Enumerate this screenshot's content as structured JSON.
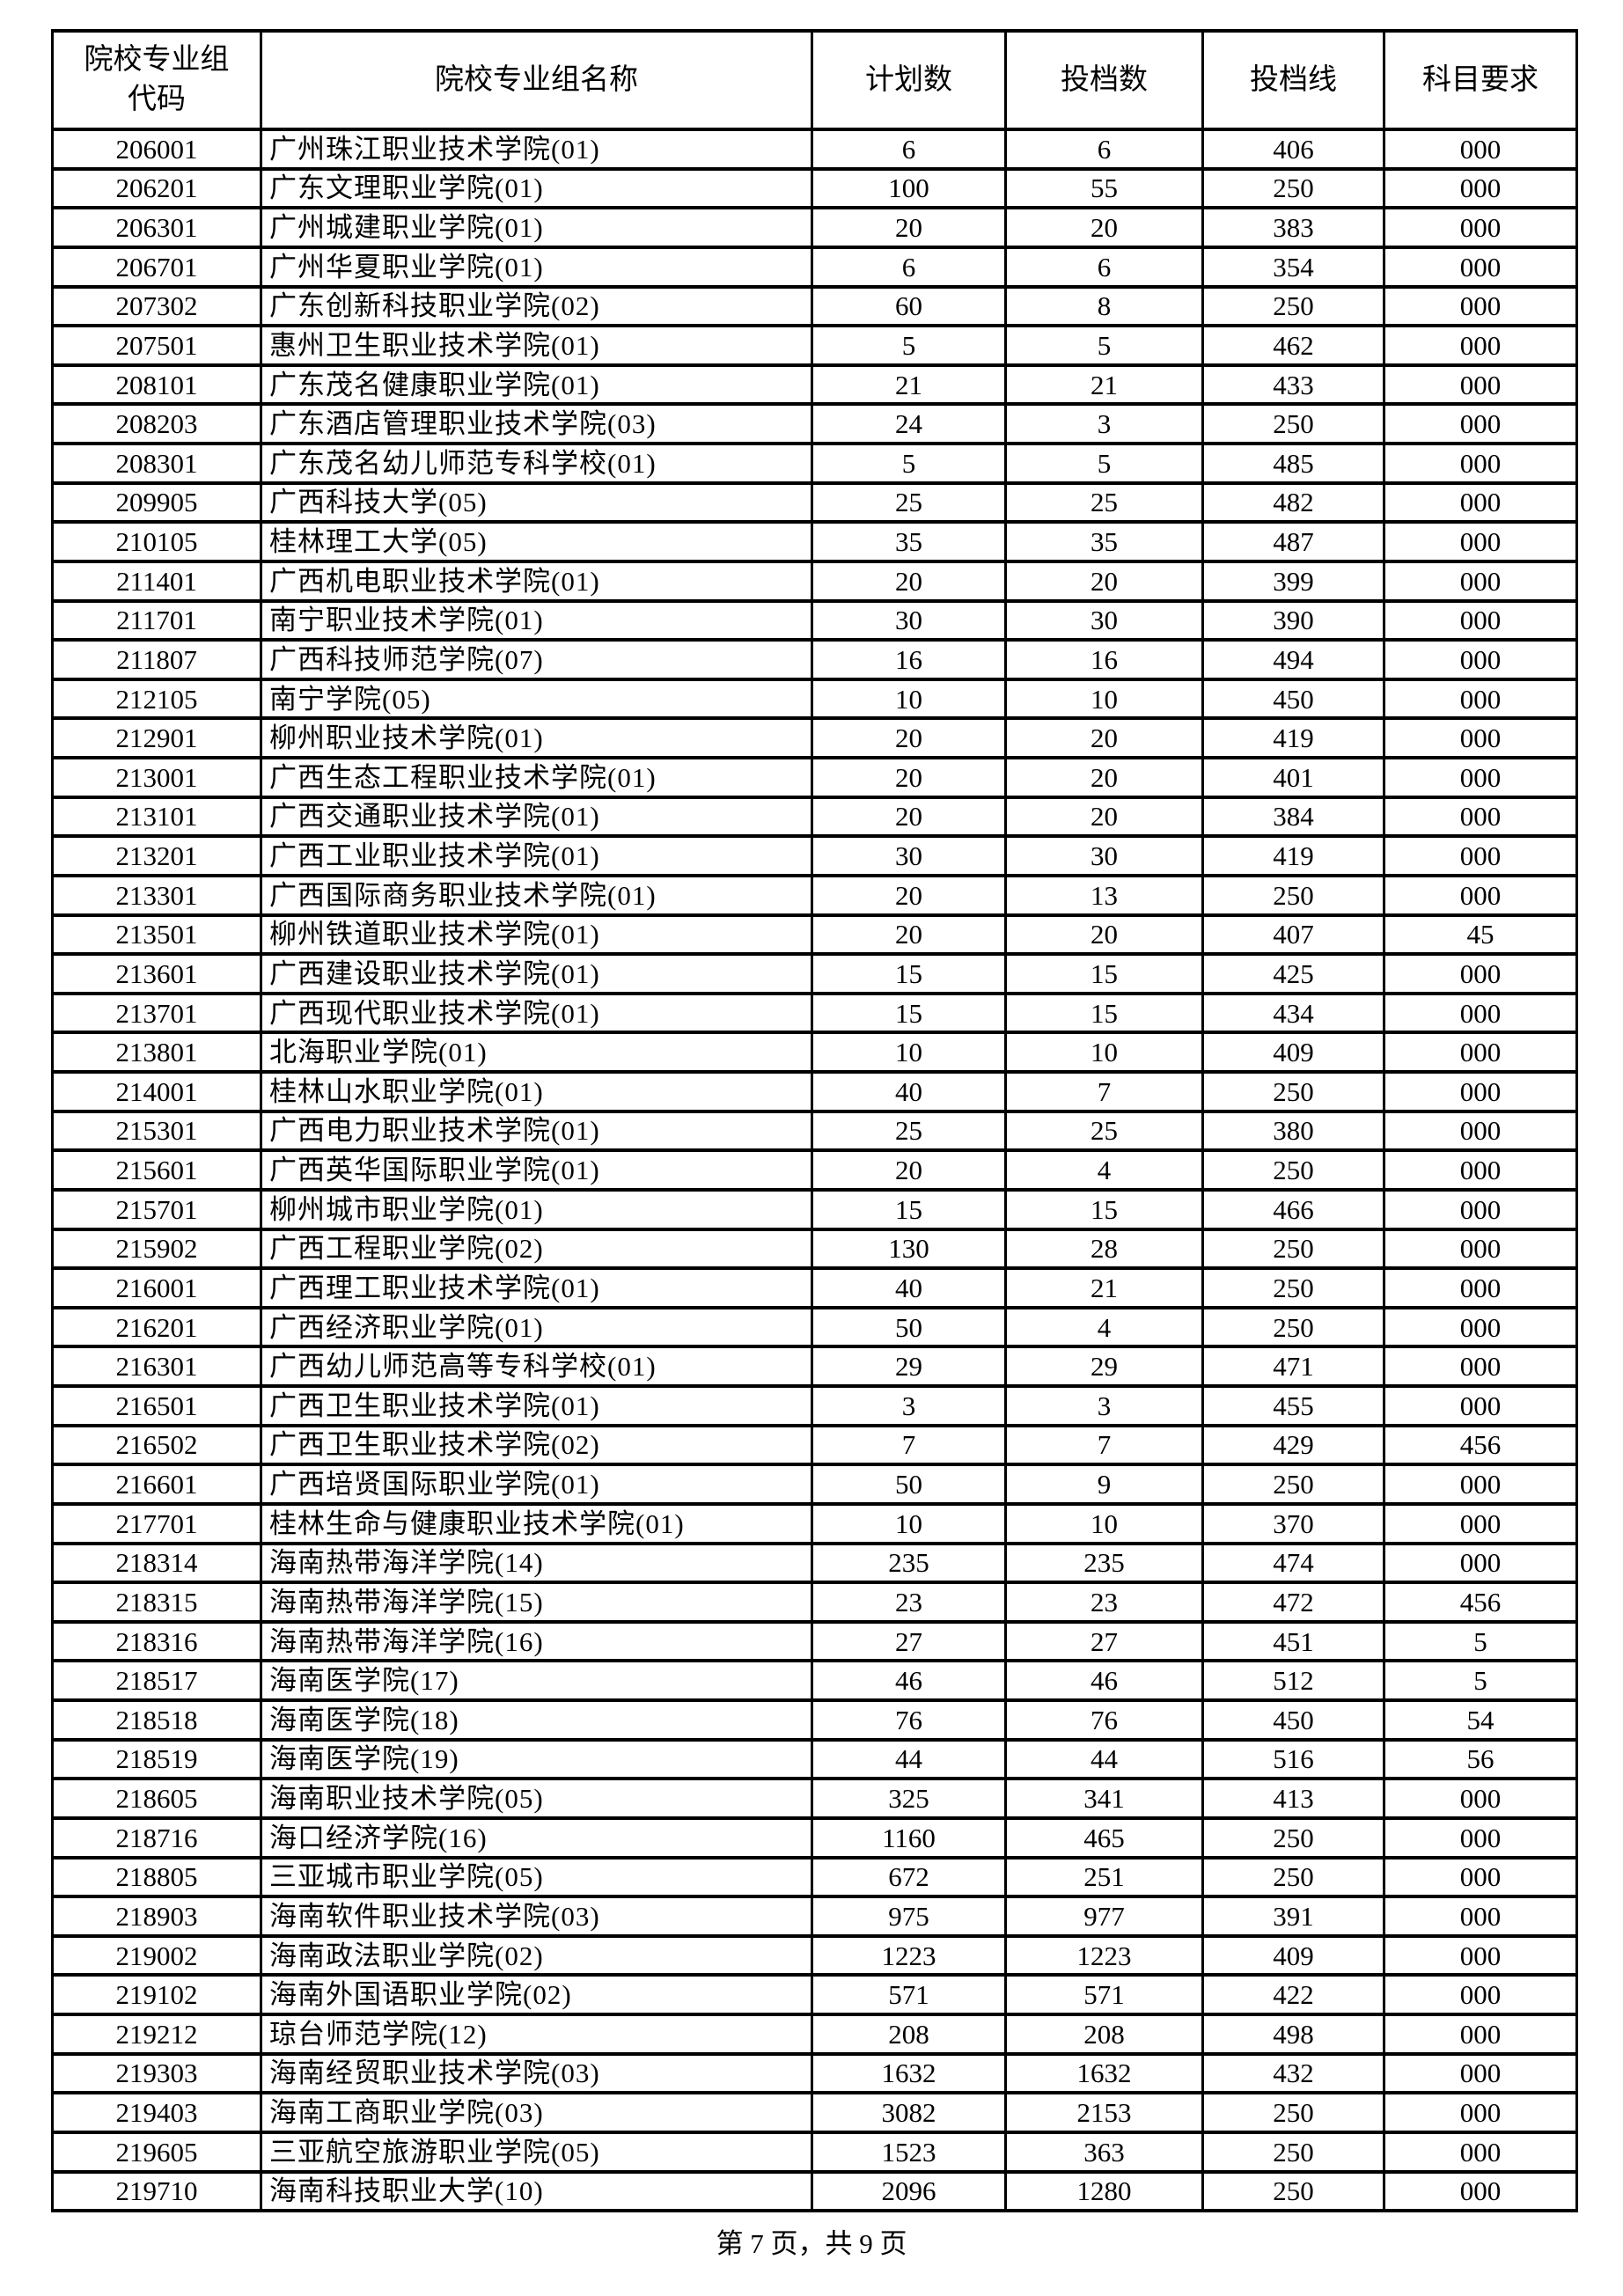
{
  "page": {
    "footer": "第 7 页，共 9 页"
  },
  "table": {
    "columns": [
      "院校专业组\n代码",
      "院校专业组名称",
      "计划数",
      "投档数",
      "投档线",
      "科目要求"
    ],
    "rows": [
      [
        "206001",
        "广州珠江职业技术学院(01)",
        "6",
        "6",
        "406",
        "000"
      ],
      [
        "206201",
        "广东文理职业学院(01)",
        "100",
        "55",
        "250",
        "000"
      ],
      [
        "206301",
        "广州城建职业学院(01)",
        "20",
        "20",
        "383",
        "000"
      ],
      [
        "206701",
        "广州华夏职业学院(01)",
        "6",
        "6",
        "354",
        "000"
      ],
      [
        "207302",
        "广东创新科技职业学院(02)",
        "60",
        "8",
        "250",
        "000"
      ],
      [
        "207501",
        "惠州卫生职业技术学院(01)",
        "5",
        "5",
        "462",
        "000"
      ],
      [
        "208101",
        "广东茂名健康职业学院(01)",
        "21",
        "21",
        "433",
        "000"
      ],
      [
        "208203",
        "广东酒店管理职业技术学院(03)",
        "24",
        "3",
        "250",
        "000"
      ],
      [
        "208301",
        "广东茂名幼儿师范专科学校(01)",
        "5",
        "5",
        "485",
        "000"
      ],
      [
        "209905",
        "广西科技大学(05)",
        "25",
        "25",
        "482",
        "000"
      ],
      [
        "210105",
        "桂林理工大学(05)",
        "35",
        "35",
        "487",
        "000"
      ],
      [
        "211401",
        "广西机电职业技术学院(01)",
        "20",
        "20",
        "399",
        "000"
      ],
      [
        "211701",
        "南宁职业技术学院(01)",
        "30",
        "30",
        "390",
        "000"
      ],
      [
        "211807",
        "广西科技师范学院(07)",
        "16",
        "16",
        "494",
        "000"
      ],
      [
        "212105",
        "南宁学院(05)",
        "10",
        "10",
        "450",
        "000"
      ],
      [
        "212901",
        "柳州职业技术学院(01)",
        "20",
        "20",
        "419",
        "000"
      ],
      [
        "213001",
        "广西生态工程职业技术学院(01)",
        "20",
        "20",
        "401",
        "000"
      ],
      [
        "213101",
        "广西交通职业技术学院(01)",
        "20",
        "20",
        "384",
        "000"
      ],
      [
        "213201",
        "广西工业职业技术学院(01)",
        "30",
        "30",
        "419",
        "000"
      ],
      [
        "213301",
        "广西国际商务职业技术学院(01)",
        "20",
        "13",
        "250",
        "000"
      ],
      [
        "213501",
        "柳州铁道职业技术学院(01)",
        "20",
        "20",
        "407",
        "45"
      ],
      [
        "213601",
        "广西建设职业技术学院(01)",
        "15",
        "15",
        "425",
        "000"
      ],
      [
        "213701",
        "广西现代职业技术学院(01)",
        "15",
        "15",
        "434",
        "000"
      ],
      [
        "213801",
        "北海职业学院(01)",
        "10",
        "10",
        "409",
        "000"
      ],
      [
        "214001",
        "桂林山水职业学院(01)",
        "40",
        "7",
        "250",
        "000"
      ],
      [
        "215301",
        "广西电力职业技术学院(01)",
        "25",
        "25",
        "380",
        "000"
      ],
      [
        "215601",
        "广西英华国际职业学院(01)",
        "20",
        "4",
        "250",
        "000"
      ],
      [
        "215701",
        "柳州城市职业学院(01)",
        "15",
        "15",
        "466",
        "000"
      ],
      [
        "215902",
        "广西工程职业学院(02)",
        "130",
        "28",
        "250",
        "000"
      ],
      [
        "216001",
        "广西理工职业技术学院(01)",
        "40",
        "21",
        "250",
        "000"
      ],
      [
        "216201",
        "广西经济职业学院(01)",
        "50",
        "4",
        "250",
        "000"
      ],
      [
        "216301",
        "广西幼儿师范高等专科学校(01)",
        "29",
        "29",
        "471",
        "000"
      ],
      [
        "216501",
        "广西卫生职业技术学院(01)",
        "3",
        "3",
        "455",
        "000"
      ],
      [
        "216502",
        "广西卫生职业技术学院(02)",
        "7",
        "7",
        "429",
        "456"
      ],
      [
        "216601",
        "广西培贤国际职业学院(01)",
        "50",
        "9",
        "250",
        "000"
      ],
      [
        "217701",
        "桂林生命与健康职业技术学院(01)",
        "10",
        "10",
        "370",
        "000"
      ],
      [
        "218314",
        "海南热带海洋学院(14)",
        "235",
        "235",
        "474",
        "000"
      ],
      [
        "218315",
        "海南热带海洋学院(15)",
        "23",
        "23",
        "472",
        "456"
      ],
      [
        "218316",
        "海南热带海洋学院(16)",
        "27",
        "27",
        "451",
        "5"
      ],
      [
        "218517",
        "海南医学院(17)",
        "46",
        "46",
        "512",
        "5"
      ],
      [
        "218518",
        "海南医学院(18)",
        "76",
        "76",
        "450",
        "54"
      ],
      [
        "218519",
        "海南医学院(19)",
        "44",
        "44",
        "516",
        "56"
      ],
      [
        "218605",
        "海南职业技术学院(05)",
        "325",
        "341",
        "413",
        "000"
      ],
      [
        "218716",
        "海口经济学院(16)",
        "1160",
        "465",
        "250",
        "000"
      ],
      [
        "218805",
        "三亚城市职业学院(05)",
        "672",
        "251",
        "250",
        "000"
      ],
      [
        "218903",
        "海南软件职业技术学院(03)",
        "975",
        "977",
        "391",
        "000"
      ],
      [
        "219002",
        "海南政法职业学院(02)",
        "1223",
        "1223",
        "409",
        "000"
      ],
      [
        "219102",
        "海南外国语职业学院(02)",
        "571",
        "571",
        "422",
        "000"
      ],
      [
        "219212",
        "琼台师范学院(12)",
        "208",
        "208",
        "498",
        "000"
      ],
      [
        "219303",
        "海南经贸职业技术学院(03)",
        "1632",
        "1632",
        "432",
        "000"
      ],
      [
        "219403",
        "海南工商职业学院(03)",
        "3082",
        "2153",
        "250",
        "000"
      ],
      [
        "219605",
        "三亚航空旅游职业学院(05)",
        "1523",
        "363",
        "250",
        "000"
      ],
      [
        "219710",
        "海南科技职业大学(10)",
        "2096",
        "1280",
        "250",
        "000"
      ]
    ]
  }
}
